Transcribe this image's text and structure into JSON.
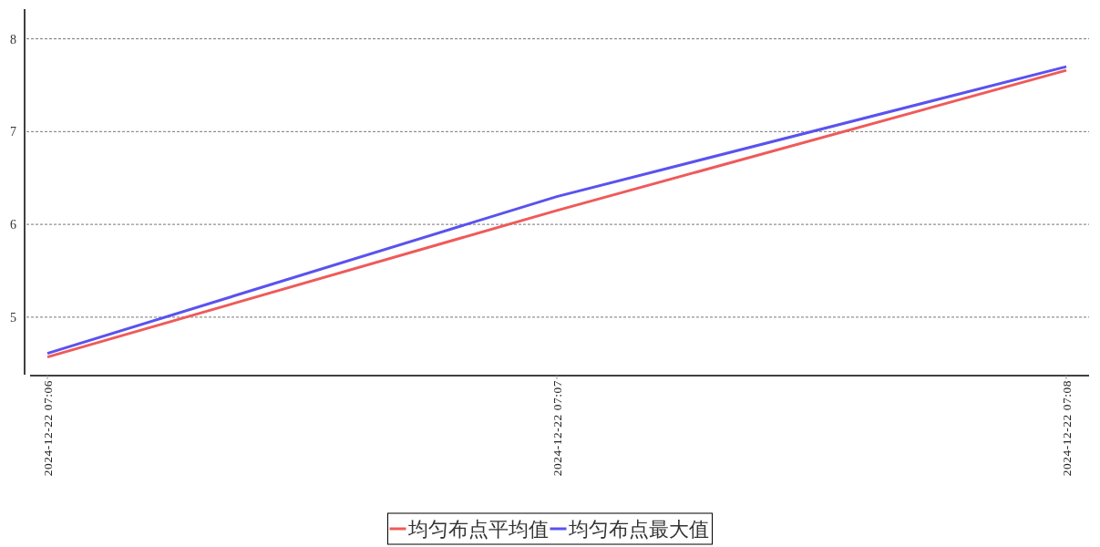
{
  "chart_data": {
    "type": "line",
    "categories": [
      "2024-12-22 07:06",
      "2024-12-22 07:07",
      "2024-12-22 07:08"
    ],
    "series": [
      {
        "name": "均匀布点平均值",
        "color": "#ef5a5a",
        "values": [
          4.57,
          6.15,
          7.66
        ]
      },
      {
        "name": "均匀布点最大值",
        "color": "#5a52ee",
        "values": [
          4.61,
          6.3,
          7.7
        ]
      }
    ],
    "ylim": [
      4.38,
      8.32
    ],
    "yticks": [
      5,
      6,
      7,
      8
    ],
    "grid": "y",
    "legend": "bottom",
    "line_style": "solid",
    "marker": "none"
  }
}
